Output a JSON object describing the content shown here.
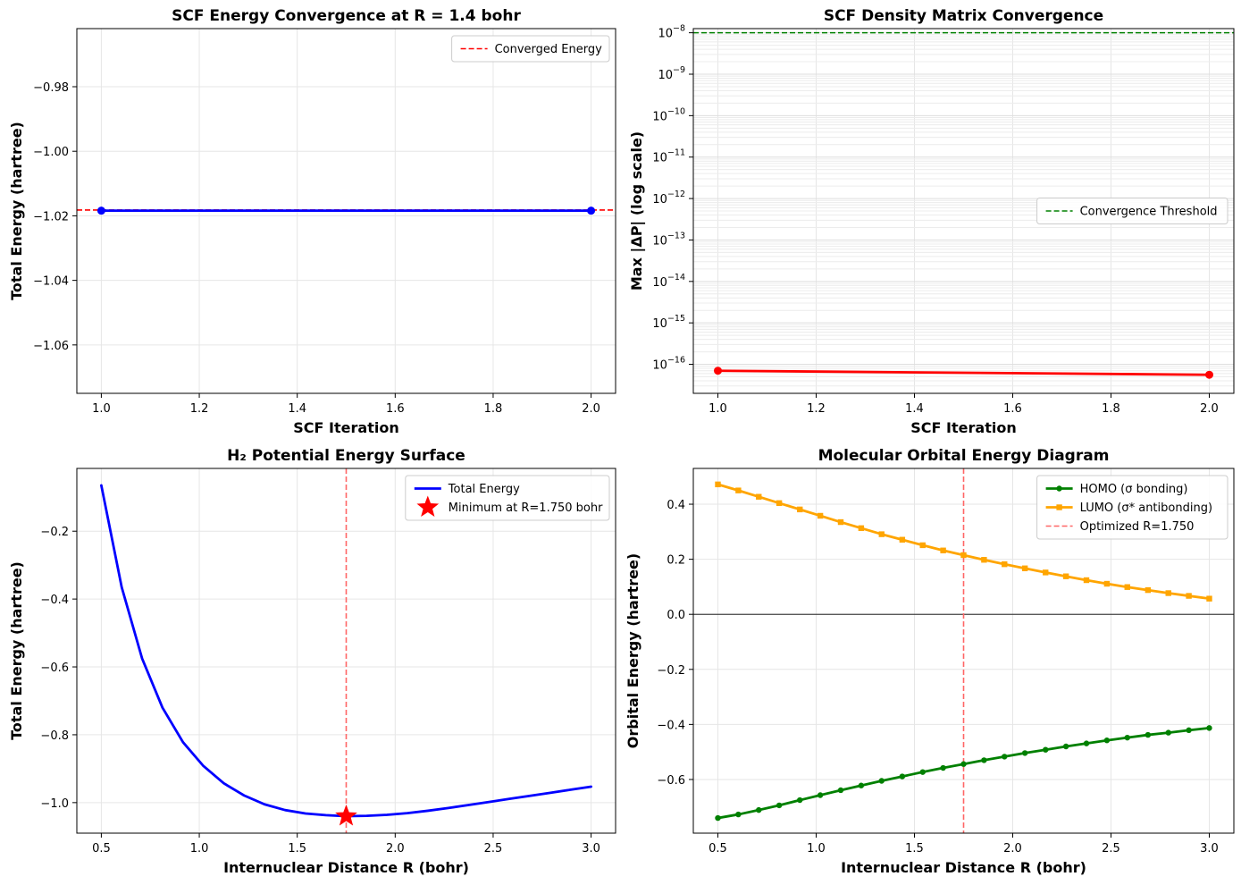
{
  "chart_data": [
    {
      "type": "line",
      "title": "SCF Energy Convergence at R = 1.4 bohr",
      "xlabel": "SCF Iteration",
      "ylabel": "Total Energy (hartree)",
      "xlim": [
        0.95,
        2.05
      ],
      "ylim": [
        -1.075,
        -0.962
      ],
      "xticks": [
        1.0,
        1.2,
        1.4,
        1.6,
        1.8,
        2.0
      ],
      "xtick_labels": [
        "1.0",
        "1.2",
        "1.4",
        "1.6",
        "1.8",
        "2.0"
      ],
      "yticks": [
        -1.06,
        -1.04,
        -1.02,
        -1.0,
        -0.98
      ],
      "ytick_labels": [
        "−1.06",
        "−1.04",
        "−1.02",
        "−1.00",
        "−0.98"
      ],
      "grid": true,
      "legend_position": "upper-right",
      "series": [
        {
          "name": "SCF Energy",
          "x": [
            1,
            2
          ],
          "y": [
            -1.0184,
            -1.0184
          ],
          "color": "#0000ff",
          "marker": "circle"
        }
      ],
      "hlines": [
        {
          "y": -1.0182,
          "label": "Converged Energy",
          "color": "#ff0000",
          "style": "dashed"
        }
      ],
      "legend": [
        {
          "label": "Converged Energy",
          "color": "#ff0000",
          "style": "dashed"
        }
      ]
    },
    {
      "type": "line",
      "title": "SCF Density Matrix Convergence",
      "xlabel": "SCF Iteration",
      "ylabel": "Max |ΔP| (log scale)",
      "yscale": "log",
      "xlim": [
        0.95,
        2.05
      ],
      "ylim_log10": [
        -16.7,
        -7.9
      ],
      "xticks": [
        1.0,
        1.2,
        1.4,
        1.6,
        1.8,
        2.0
      ],
      "xtick_labels": [
        "1.0",
        "1.2",
        "1.4",
        "1.6",
        "1.8",
        "2.0"
      ],
      "ytick_exponents": [
        -16,
        -15,
        -14,
        -13,
        -12,
        -11,
        -10,
        -9,
        -8
      ],
      "ytick_base": "10",
      "grid": true,
      "legend_position": "center-right",
      "series": [
        {
          "name": "Max |ΔP|",
          "x": [
            1,
            2
          ],
          "y": [
            7e-17,
            5.6e-17
          ],
          "color": "#ff0000",
          "marker": "circle"
        }
      ],
      "hlines": [
        {
          "y": 1e-08,
          "label": "Convergence Threshold",
          "color": "#008000",
          "style": "dashed"
        }
      ],
      "legend": [
        {
          "label": "Convergence Threshold",
          "color": "#008000",
          "style": "dashed"
        }
      ]
    },
    {
      "type": "line",
      "title": "H₂ Potential Energy Surface",
      "xlabel": "Internuclear Distance R (bohr)",
      "ylabel": "Total Energy (hartree)",
      "xlim": [
        0.375,
        3.125
      ],
      "ylim": [
        -1.09,
        -0.015
      ],
      "xticks": [
        0.5,
        1.0,
        1.5,
        2.0,
        2.5,
        3.0
      ],
      "xtick_labels": [
        "0.5",
        "1.0",
        "1.5",
        "2.0",
        "2.5",
        "3.0"
      ],
      "yticks": [
        -1.0,
        -0.8,
        -0.6,
        -0.4,
        -0.2
      ],
      "ytick_labels": [
        "−1.0",
        "−0.8",
        "−0.6",
        "−0.4",
        "−0.2"
      ],
      "grid": true,
      "legend_position": "upper-right",
      "series": [
        {
          "name": "Total Energy",
          "color": "#0000ff",
          "x": [
            0.5,
            0.604,
            0.708,
            0.812,
            0.917,
            1.021,
            1.125,
            1.229,
            1.333,
            1.438,
            1.542,
            1.646,
            1.75,
            1.854,
            1.958,
            2.062,
            2.167,
            2.271,
            2.375,
            2.479,
            2.583,
            2.688,
            2.792,
            2.896,
            3.0
          ],
          "y": [
            -0.065,
            -0.365,
            -0.575,
            -0.72,
            -0.822,
            -0.892,
            -0.943,
            -0.979,
            -1.005,
            -1.022,
            -1.032,
            -1.037,
            -1.04,
            -1.039,
            -1.036,
            -1.031,
            -1.024,
            -1.016,
            -1.007,
            -0.998,
            -0.989,
            -0.98,
            -0.971,
            -0.962,
            -0.953
          ]
        }
      ],
      "minimum_point": {
        "x": 1.75,
        "y": -1.04,
        "label": "Minimum at R=1.750 bohr",
        "color": "#ff0000",
        "marker": "star"
      },
      "vlines": [
        {
          "x": 1.75,
          "color": "#ff6666",
          "style": "dashed"
        }
      ],
      "legend": [
        {
          "label": "Total Energy",
          "color": "#0000ff",
          "style": "solid"
        },
        {
          "label": "Minimum at R=1.750 bohr",
          "color": "#ff0000",
          "style": "star"
        }
      ]
    },
    {
      "type": "line",
      "title": "Molecular Orbital Energy Diagram",
      "xlabel": "Internuclear Distance R (bohr)",
      "ylabel": "Orbital Energy (hartree)",
      "xlim": [
        0.375,
        3.125
      ],
      "ylim": [
        -0.795,
        0.53
      ],
      "xticks": [
        0.5,
        1.0,
        1.5,
        2.0,
        2.5,
        3.0
      ],
      "xtick_labels": [
        "0.5",
        "1.0",
        "1.5",
        "2.0",
        "2.5",
        "3.0"
      ],
      "yticks": [
        -0.6,
        -0.4,
        -0.2,
        0.0,
        0.2,
        0.4
      ],
      "ytick_labels": [
        "−0.6",
        "−0.4",
        "−0.2",
        "0.0",
        "0.2",
        "0.4"
      ],
      "grid": true,
      "legend_position": "upper-right",
      "series": [
        {
          "name": "HOMO (σ bonding)",
          "color": "#008000",
          "marker": "circle",
          "x": [
            0.5,
            0.604,
            0.708,
            0.812,
            0.917,
            1.021,
            1.125,
            1.229,
            1.333,
            1.438,
            1.542,
            1.646,
            1.75,
            1.854,
            1.958,
            2.062,
            2.167,
            2.271,
            2.375,
            2.479,
            2.583,
            2.688,
            2.792,
            2.896,
            3.0
          ],
          "y": [
            -0.74,
            -0.727,
            -0.711,
            -0.694,
            -0.675,
            -0.657,
            -0.639,
            -0.622,
            -0.605,
            -0.589,
            -0.573,
            -0.558,
            -0.544,
            -0.53,
            -0.517,
            -0.504,
            -0.492,
            -0.48,
            -0.469,
            -0.458,
            -0.448,
            -0.438,
            -0.43,
            -0.421,
            -0.413
          ]
        },
        {
          "name": "LUMO (σ* antibonding)",
          "color": "#ffa500",
          "marker": "square",
          "x": [
            0.5,
            0.604,
            0.708,
            0.812,
            0.917,
            1.021,
            1.125,
            1.229,
            1.333,
            1.438,
            1.542,
            1.646,
            1.75,
            1.854,
            1.958,
            2.062,
            2.167,
            2.271,
            2.375,
            2.479,
            2.583,
            2.688,
            2.792,
            2.896,
            3.0
          ],
          "y": [
            0.472,
            0.45,
            0.427,
            0.404,
            0.381,
            0.358,
            0.335,
            0.313,
            0.291,
            0.271,
            0.251,
            0.232,
            0.215,
            0.198,
            0.182,
            0.167,
            0.152,
            0.138,
            0.124,
            0.111,
            0.099,
            0.088,
            0.077,
            0.067,
            0.057
          ]
        }
      ],
      "hlines": [
        {
          "y": 0.0,
          "color": "#000000",
          "style": "solid"
        }
      ],
      "vlines": [
        {
          "x": 1.75,
          "label": "Optimized R=1.750",
          "color": "#ff6666",
          "style": "dashed"
        }
      ],
      "legend": [
        {
          "label": "HOMO (σ bonding)",
          "color": "#008000",
          "style": "solid-circle"
        },
        {
          "label": "LUMO (σ* antibonding)",
          "color": "#ffa500",
          "style": "solid-square"
        },
        {
          "label": "Optimized R=1.750",
          "color": "#ff6666",
          "style": "dashed"
        }
      ]
    }
  ]
}
